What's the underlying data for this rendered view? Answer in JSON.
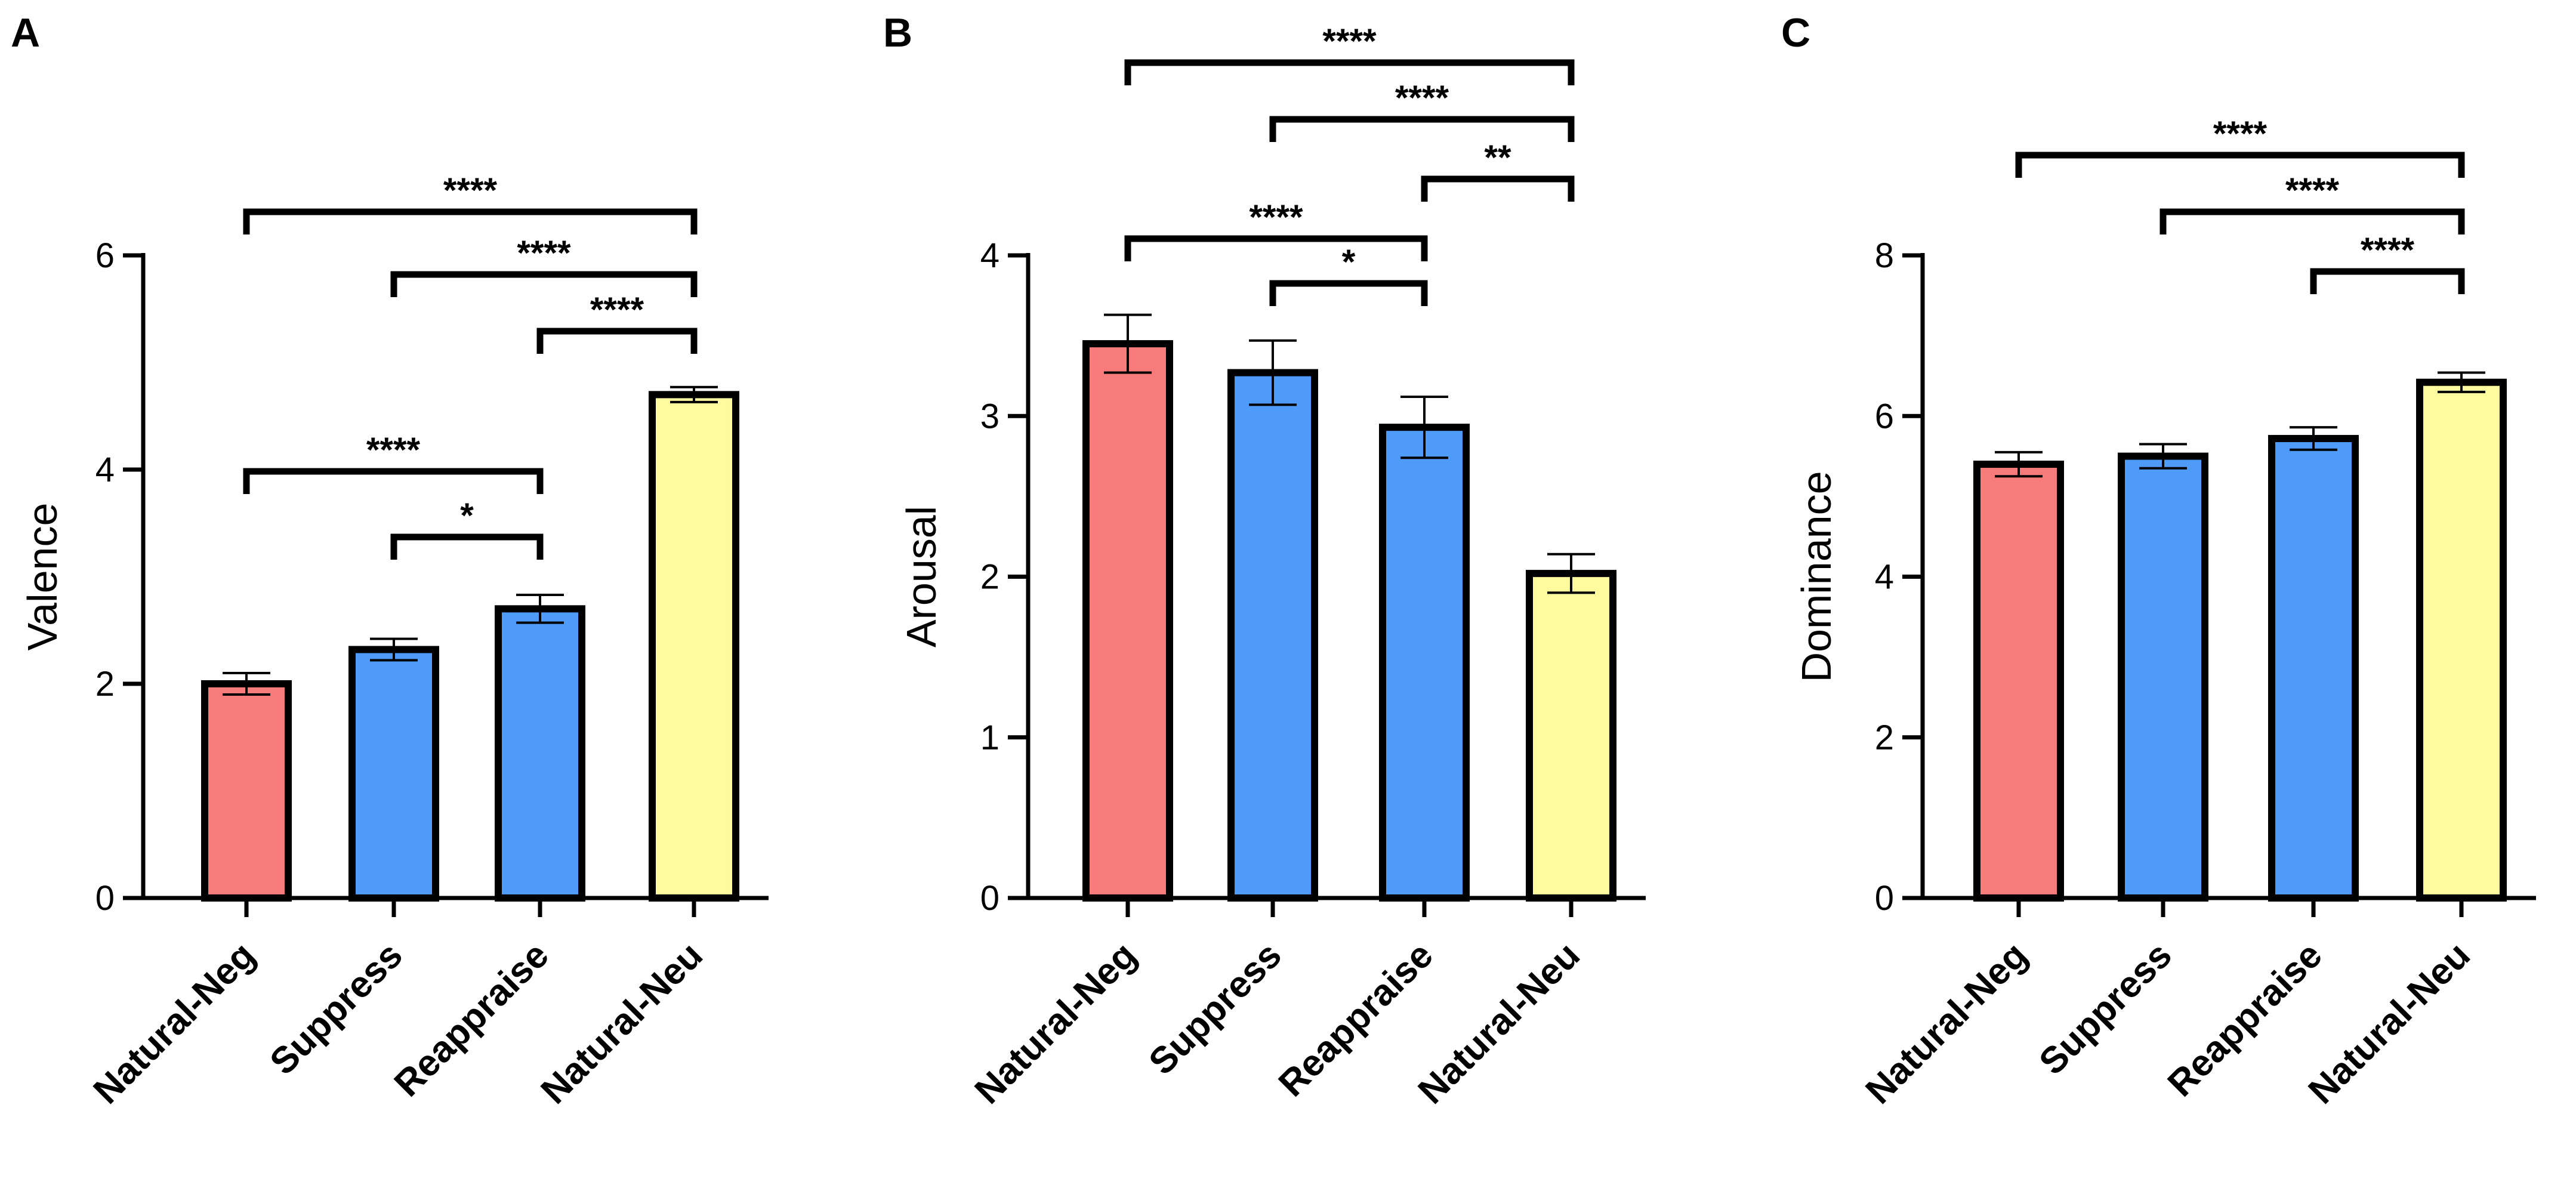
{
  "chart_data": [
    {
      "type": "bar",
      "panel": "A",
      "ylabel": "Valence",
      "ylim": [
        0,
        6
      ],
      "yticks": [
        0,
        2,
        4,
        6
      ],
      "categories": [
        "Natural-Neg",
        "Suppress",
        "Reappraise",
        "Natural-Neu"
      ],
      "values": [
        2.0,
        2.32,
        2.7,
        4.7
      ],
      "errors": [
        0.1,
        0.1,
        0.13,
        0.07
      ],
      "colors": [
        "#f77b7b",
        "#4f9bfa",
        "#4f9bfa",
        "#fefb9f"
      ],
      "significance": [
        {
          "from": 0,
          "to": 3,
          "label": "****"
        },
        {
          "from": 1,
          "to": 3,
          "label": "****"
        },
        {
          "from": 2,
          "to": 3,
          "label": "****"
        },
        {
          "from": 0,
          "to": 2,
          "label": "****"
        },
        {
          "from": 1,
          "to": 2,
          "label": "*"
        }
      ]
    },
    {
      "type": "bar",
      "panel": "B",
      "ylabel": "Arousal",
      "ylim": [
        0,
        4
      ],
      "yticks": [
        0,
        1,
        2,
        3,
        4
      ],
      "categories": [
        "Natural-Neg",
        "Suppress",
        "Reappraise",
        "Natural-Neu"
      ],
      "values": [
        3.45,
        3.27,
        2.93,
        2.02
      ],
      "errors": [
        0.18,
        0.2,
        0.19,
        0.12
      ],
      "colors": [
        "#f77b7b",
        "#4f9bfa",
        "#4f9bfa",
        "#fefb9f"
      ],
      "significance": [
        {
          "from": 0,
          "to": 3,
          "label": "****"
        },
        {
          "from": 1,
          "to": 3,
          "label": "****"
        },
        {
          "from": 2,
          "to": 3,
          "label": "**"
        },
        {
          "from": 0,
          "to": 2,
          "label": "****"
        },
        {
          "from": 1,
          "to": 2,
          "label": "*"
        }
      ]
    },
    {
      "type": "bar",
      "panel": "C",
      "ylabel": "Dominance",
      "ylim": [
        0,
        8
      ],
      "yticks": [
        0,
        2,
        4,
        6,
        8
      ],
      "categories": [
        "Natural-Neg",
        "Suppress",
        "Reappraise",
        "Natural-Neu"
      ],
      "values": [
        5.4,
        5.5,
        5.72,
        6.42
      ],
      "errors": [
        0.15,
        0.15,
        0.14,
        0.12
      ],
      "colors": [
        "#f77b7b",
        "#4f9bfa",
        "#4f9bfa",
        "#fefb9f"
      ],
      "significance": [
        {
          "from": 0,
          "to": 3,
          "label": "****"
        },
        {
          "from": 1,
          "to": 3,
          "label": "****"
        },
        {
          "from": 2,
          "to": 3,
          "label": "****"
        }
      ]
    }
  ]
}
